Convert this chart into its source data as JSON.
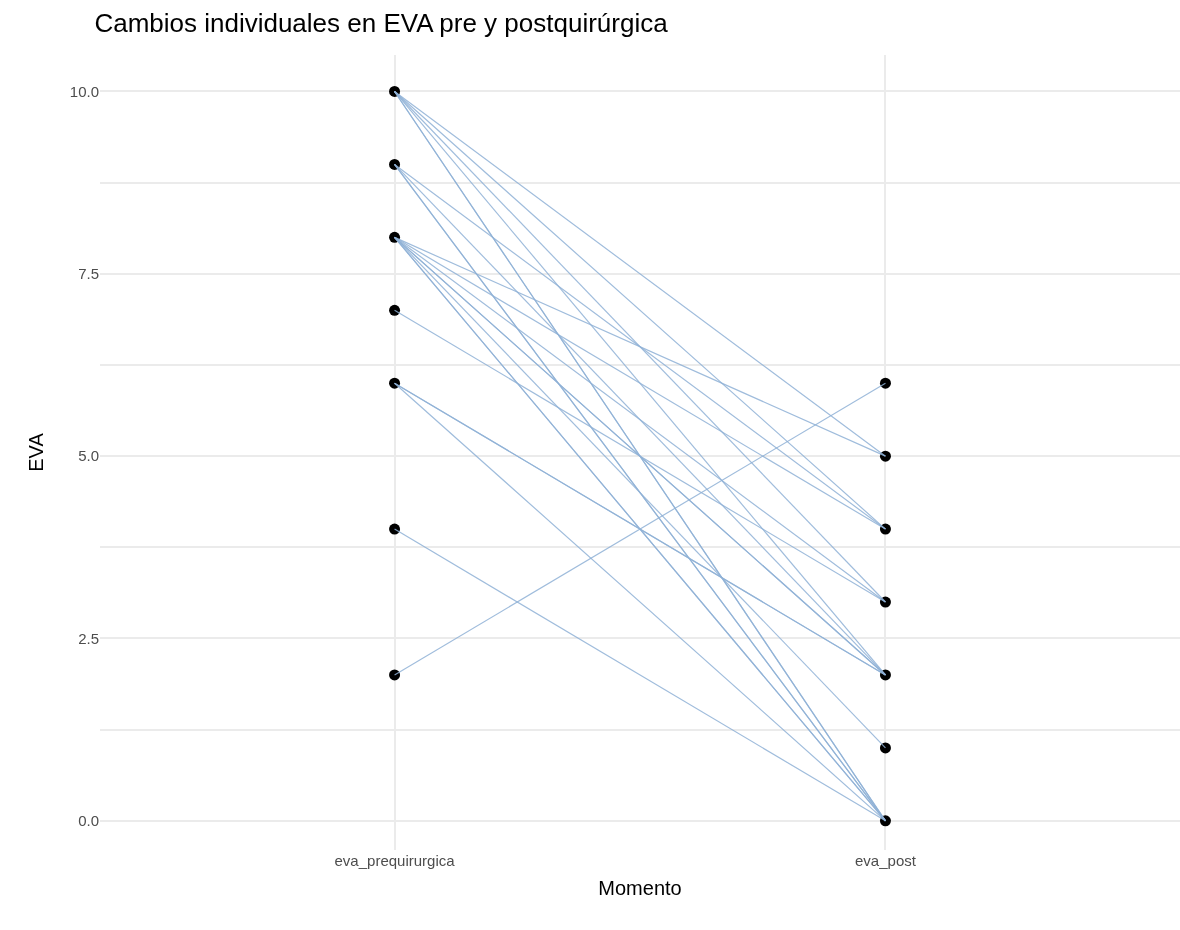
{
  "chart_data": {
    "type": "line",
    "title": "Cambios individuales en EVA pre y postquirúrgica",
    "xlabel": "Momento",
    "ylabel": "EVA",
    "categories": [
      "eva_prequirurgica",
      "eva_post"
    ],
    "ylim": [
      -0.4,
      10.5
    ],
    "yticks": [
      {
        "value": 0,
        "label": "0.0"
      },
      {
        "value": 1.25,
        "label": null
      },
      {
        "value": 2.5,
        "label": "2.5"
      },
      {
        "value": 3.75,
        "label": null
      },
      {
        "value": 5,
        "label": "5.0"
      },
      {
        "value": 6.25,
        "label": null
      },
      {
        "value": 7.5,
        "label": "7.5"
      },
      {
        "value": 8.75,
        "label": null
      },
      {
        "value": 10,
        "label": "10.0"
      }
    ],
    "grid": true,
    "marker": "none",
    "line_style": "solid",
    "series": [
      {
        "color": "#8fb1d6",
        "values": [
          10,
          5
        ]
      },
      {
        "color": "#8fb1d6",
        "values": [
          10,
          4
        ]
      },
      {
        "color": "#8fb1d6",
        "values": [
          10,
          3
        ]
      },
      {
        "color": "#8fb1d6",
        "values": [
          10,
          2
        ]
      },
      {
        "color": "#8fb1d6",
        "values": [
          10,
          0
        ]
      },
      {
        "color": "#8fb1d6",
        "values": [
          10,
          0
        ]
      },
      {
        "color": "#8fb1d6",
        "values": [
          9,
          4
        ]
      },
      {
        "color": "#8fb1d6",
        "values": [
          9,
          2
        ]
      },
      {
        "color": "#8fb1d6",
        "values": [
          9,
          0
        ]
      },
      {
        "color": "#8fb1d6",
        "values": [
          9,
          0
        ]
      },
      {
        "color": "#8fb1d6",
        "values": [
          8,
          5
        ]
      },
      {
        "color": "#8fb1d6",
        "values": [
          8,
          4
        ]
      },
      {
        "color": "#8fb1d6",
        "values": [
          8,
          3
        ]
      },
      {
        "color": "#8fb1d6",
        "values": [
          8,
          2
        ]
      },
      {
        "color": "#8fb1d6",
        "values": [
          8,
          2
        ]
      },
      {
        "color": "#8fb1d6",
        "values": [
          8,
          1
        ]
      },
      {
        "color": "#8fb1d6",
        "values": [
          8,
          0
        ]
      },
      {
        "color": "#8fb1d6",
        "values": [
          8,
          0
        ]
      },
      {
        "color": "#8fb1d6",
        "values": [
          7,
          3
        ]
      },
      {
        "color": "#8fb1d6",
        "values": [
          6,
          2
        ]
      },
      {
        "color": "#8fb1d6",
        "values": [
          6,
          2
        ]
      },
      {
        "color": "#8fb1d6",
        "values": [
          6,
          0
        ]
      },
      {
        "color": "#8fb1d6",
        "values": [
          4,
          0
        ]
      },
      {
        "color": "#8fb1d6",
        "values": [
          2,
          6
        ]
      },
      {
        "type": "scatter",
        "marker": "circle",
        "color": "#000000",
        "x": [
          "eva_prequirurgica",
          "eva_prequirurgica",
          "eva_prequirurgica",
          "eva_prequirurgica",
          "eva_prequirurgica",
          "eva_prequirurgica",
          "eva_prequirurgica",
          "eva_post",
          "eva_post",
          "eva_post",
          "eva_post",
          "eva_post",
          "eva_post",
          "eva_post"
        ],
        "values": [
          10,
          9,
          8,
          7,
          6,
          4,
          2,
          6,
          5,
          4,
          3,
          2,
          1,
          0
        ]
      }
    ]
  }
}
